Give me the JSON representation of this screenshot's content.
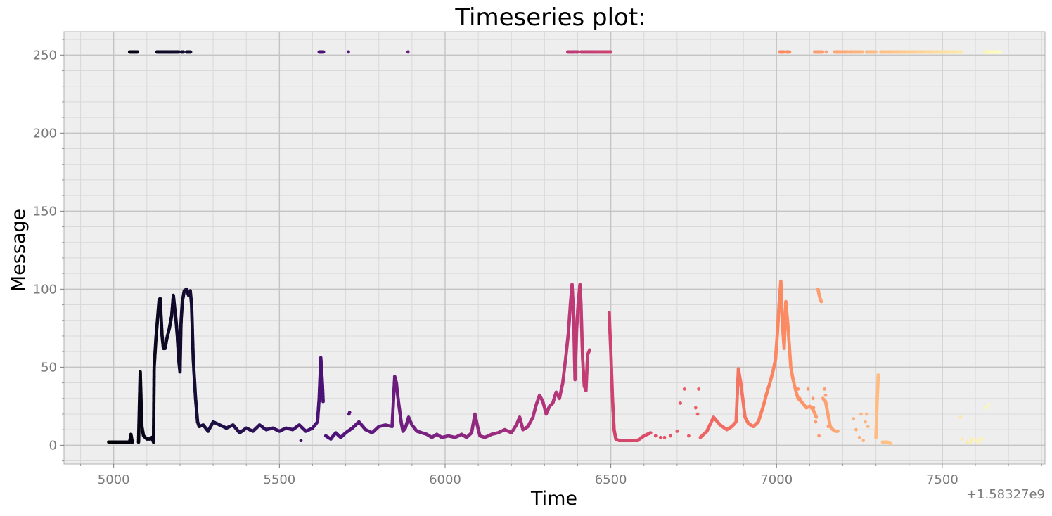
{
  "chart_data": {
    "type": "scatter",
    "title": "Timeseries plot:",
    "xlabel": "Time",
    "ylabel": "Message",
    "x_offset_label": "+1.58327e9",
    "xlim": [
      4850,
      7810
    ],
    "ylim": [
      -12,
      265
    ],
    "xticks": [
      5000,
      5500,
      6000,
      6500,
      7000,
      7500
    ],
    "xtick_labels": [
      "5000",
      "5500",
      "6000",
      "6500",
      "7000",
      "7500"
    ],
    "yticks": [
      0,
      50,
      100,
      150,
      200,
      250
    ],
    "ytick_labels": [
      "0",
      "50",
      "100",
      "150",
      "200",
      "250"
    ],
    "grid": true,
    "minor_grid": true,
    "background": "#eeeeee",
    "colormap": "magma",
    "colormap_stops": [
      "#000004",
      "#1c1044",
      "#4f127b",
      "#812581",
      "#b5367a",
      "#e55064",
      "#fb8761",
      "#fec287",
      "#fcfdbf"
    ],
    "color_by": "x",
    "traces": [
      [
        [
          4985,
          2
        ],
        [
          5000,
          2
        ],
        [
          5020,
          2
        ],
        [
          5040,
          2
        ],
        [
          5048,
          2
        ],
        [
          5052,
          7
        ],
        [
          5056,
          2
        ]
      ],
      [
        [
          5075,
          2
        ],
        [
          5080,
          47
        ],
        [
          5083,
          25
        ],
        [
          5085,
          12
        ],
        [
          5090,
          6
        ],
        [
          5100,
          4
        ],
        [
          5110,
          4
        ],
        [
          5115,
          5
        ],
        [
          5120,
          2
        ],
        [
          5122,
          50
        ],
        [
          5128,
          70
        ],
        [
          5132,
          80
        ],
        [
          5137,
          93
        ],
        [
          5140,
          94
        ],
        [
          5146,
          70
        ],
        [
          5150,
          62
        ],
        [
          5155,
          62
        ],
        [
          5160,
          68
        ],
        [
          5168,
          75
        ],
        [
          5175,
          83
        ],
        [
          5180,
          96
        ],
        [
          5183,
          90
        ],
        [
          5188,
          80
        ],
        [
          5192,
          70
        ],
        [
          5196,
          55
        ],
        [
          5200,
          47
        ],
        [
          5203,
          78
        ],
        [
          5207,
          92
        ],
        [
          5213,
          99
        ],
        [
          5220,
          100
        ],
        [
          5226,
          96
        ],
        [
          5231,
          99
        ],
        [
          5235,
          90
        ],
        [
          5240,
          55
        ],
        [
          5247,
          30
        ],
        [
          5253,
          15
        ],
        [
          5258,
          12
        ],
        [
          5270,
          13
        ],
        [
          5285,
          9
        ],
        [
          5300,
          15
        ],
        [
          5320,
          13
        ],
        [
          5340,
          11
        ],
        [
          5360,
          13
        ],
        [
          5380,
          8
        ],
        [
          5400,
          11
        ],
        [
          5420,
          9
        ],
        [
          5440,
          13
        ],
        [
          5460,
          10
        ],
        [
          5480,
          11
        ],
        [
          5500,
          9
        ],
        [
          5520,
          11
        ],
        [
          5540,
          10
        ],
        [
          5560,
          13
        ],
        [
          5580,
          9
        ],
        [
          5600,
          11
        ],
        [
          5615,
          15
        ],
        [
          5620,
          30
        ],
        [
          5625,
          56
        ],
        [
          5630,
          38
        ],
        [
          5632,
          28
        ]
      ],
      [
        [
          5640,
          6
        ],
        [
          5655,
          4
        ],
        [
          5670,
          8
        ],
        [
          5685,
          5
        ],
        [
          5700,
          8
        ],
        [
          5720,
          11
        ],
        [
          5740,
          15
        ],
        [
          5760,
          10
        ],
        [
          5780,
          8
        ],
        [
          5800,
          12
        ],
        [
          5820,
          13
        ],
        [
          5840,
          12
        ],
        [
          5848,
          44
        ],
        [
          5853,
          40
        ],
        [
          5858,
          30
        ],
        [
          5863,
          22
        ],
        [
          5868,
          14
        ],
        [
          5873,
          9
        ],
        [
          5880,
          11
        ],
        [
          5890,
          18
        ],
        [
          5900,
          13
        ],
        [
          5915,
          9
        ],
        [
          5930,
          8
        ],
        [
          5945,
          7
        ],
        [
          5960,
          5
        ],
        [
          5975,
          7
        ],
        [
          5990,
          5
        ],
        [
          6010,
          6
        ],
        [
          6030,
          5
        ],
        [
          6050,
          7
        ],
        [
          6065,
          5
        ],
        [
          6080,
          8
        ],
        [
          6090,
          20
        ],
        [
          6097,
          13
        ],
        [
          6105,
          6
        ],
        [
          6120,
          5
        ],
        [
          6140,
          7
        ],
        [
          6160,
          8
        ],
        [
          6180,
          10
        ],
        [
          6200,
          8
        ],
        [
          6215,
          13
        ],
        [
          6225,
          18
        ],
        [
          6235,
          10
        ],
        [
          6250,
          12
        ],
        [
          6265,
          18
        ],
        [
          6275,
          26
        ],
        [
          6285,
          32
        ],
        [
          6295,
          28
        ],
        [
          6305,
          20
        ],
        [
          6315,
          25
        ],
        [
          6325,
          27
        ],
        [
          6335,
          34
        ],
        [
          6345,
          30
        ],
        [
          6355,
          40
        ],
        [
          6365,
          58
        ],
        [
          6372,
          72
        ],
        [
          6378,
          90
        ],
        [
          6383,
          103
        ],
        [
          6388,
          83
        ],
        [
          6392,
          42
        ],
        [
          6397,
          75
        ],
        [
          6402,
          92
        ],
        [
          6407,
          103
        ],
        [
          6410,
          90
        ],
        [
          6415,
          55
        ],
        [
          6420,
          38
        ],
        [
          6425,
          35
        ],
        [
          6430,
          58
        ],
        [
          6436,
          61
        ]
      ],
      [
        [
          6495,
          85
        ],
        [
          6500,
          60
        ],
        [
          6505,
          30
        ],
        [
          6510,
          10
        ],
        [
          6515,
          4
        ],
        [
          6525,
          3
        ],
        [
          6540,
          3
        ],
        [
          6560,
          3
        ],
        [
          6580,
          3
        ],
        [
          6600,
          6
        ],
        [
          6620,
          8
        ]
      ],
      [
        [
          6770,
          5
        ],
        [
          6790,
          9
        ],
        [
          6810,
          18
        ],
        [
          6830,
          13
        ],
        [
          6850,
          10
        ],
        [
          6865,
          12
        ],
        [
          6878,
          15
        ],
        [
          6885,
          49
        ],
        [
          6892,
          40
        ],
        [
          6898,
          30
        ],
        [
          6905,
          18
        ],
        [
          6915,
          14
        ],
        [
          6930,
          12
        ],
        [
          6945,
          15
        ],
        [
          6960,
          25
        ],
        [
          6970,
          33
        ],
        [
          6980,
          40
        ],
        [
          6990,
          48
        ],
        [
          6997,
          55
        ],
        [
          7003,
          73
        ],
        [
          7008,
          91
        ],
        [
          7013,
          105
        ],
        [
          7018,
          77
        ],
        [
          7023,
          62
        ],
        [
          7028,
          92
        ],
        [
          7035,
          75
        ],
        [
          7043,
          50
        ],
        [
          7050,
          42
        ],
        [
          7058,
          35
        ],
        [
          7065,
          30
        ],
        [
          7075,
          28
        ],
        [
          7090,
          24
        ],
        [
          7100,
          25
        ],
        [
          7110,
          23
        ],
        [
          7120,
          18
        ]
      ],
      [
        [
          7125,
          100
        ],
        [
          7130,
          95
        ],
        [
          7135,
          92
        ]
      ],
      [
        [
          7140,
          30
        ],
        [
          7148,
          28
        ],
        [
          7155,
          20
        ],
        [
          7162,
          12
        ],
        [
          7170,
          10
        ],
        [
          7178,
          9
        ],
        [
          7185,
          9
        ]
      ],
      [
        [
          7300,
          5
        ],
        [
          7303,
          25
        ],
        [
          7307,
          45
        ]
      ],
      [
        [
          7320,
          2
        ],
        [
          7335,
          2
        ],
        [
          7345,
          1
        ]
      ]
    ],
    "scatter_points": [
      [
        7065,
        36
      ],
      [
        7070,
        30
      ],
      [
        7095,
        36
      ],
      [
        7110,
        30
      ],
      [
        7112,
        24
      ],
      [
        7118,
        15
      ],
      [
        7128,
        6
      ],
      [
        7145,
        36
      ],
      [
        7148,
        32
      ],
      [
        7156,
        12
      ],
      [
        7232,
        17
      ],
      [
        7240,
        10
      ],
      [
        7250,
        5
      ],
      [
        7255,
        20
      ],
      [
        7262,
        3
      ],
      [
        7268,
        15
      ],
      [
        7272,
        20
      ],
      [
        7276,
        12
      ],
      [
        6635,
        6
      ],
      [
        6650,
        5
      ],
      [
        6662,
        5
      ],
      [
        6680,
        6
      ],
      [
        6700,
        9
      ],
      [
        6710,
        27
      ],
      [
        6722,
        36
      ],
      [
        6735,
        6
      ],
      [
        6756,
        24
      ],
      [
        6762,
        20
      ],
      [
        6765,
        36
      ],
      [
        5712,
        21
      ],
      [
        5565,
        3
      ],
      [
        5710,
        20
      ],
      [
        7555,
        18
      ],
      [
        7560,
        4
      ],
      [
        7575,
        2
      ],
      [
        7585,
        2
      ],
      [
        7590,
        4
      ],
      [
        7600,
        3
      ],
      [
        7610,
        2
      ],
      [
        7615,
        4
      ],
      [
        7620,
        4
      ],
      [
        7630,
        24
      ],
      [
        7640,
        26
      ]
    ],
    "top_segments": [
      [
        5048,
        5072
      ],
      [
        5130,
        5198
      ],
      [
        5205,
        5210
      ],
      [
        5220,
        5232
      ],
      [
        5620,
        5634
      ],
      [
        6370,
        6392
      ],
      [
        6395,
        6402
      ],
      [
        6410,
        6500
      ],
      [
        7010,
        7022
      ],
      [
        7030,
        7040
      ],
      [
        7115,
        7140
      ],
      [
        7175,
        7215
      ],
      [
        7220,
        7260
      ],
      [
        7272,
        7300
      ],
      [
        7315,
        7362
      ],
      [
        7362,
        7440
      ],
      [
        7445,
        7560
      ],
      [
        7628,
        7675
      ]
    ],
    "top_points": [
      5708,
      5888,
      5165,
      5175,
      6450,
      7150
    ]
  }
}
